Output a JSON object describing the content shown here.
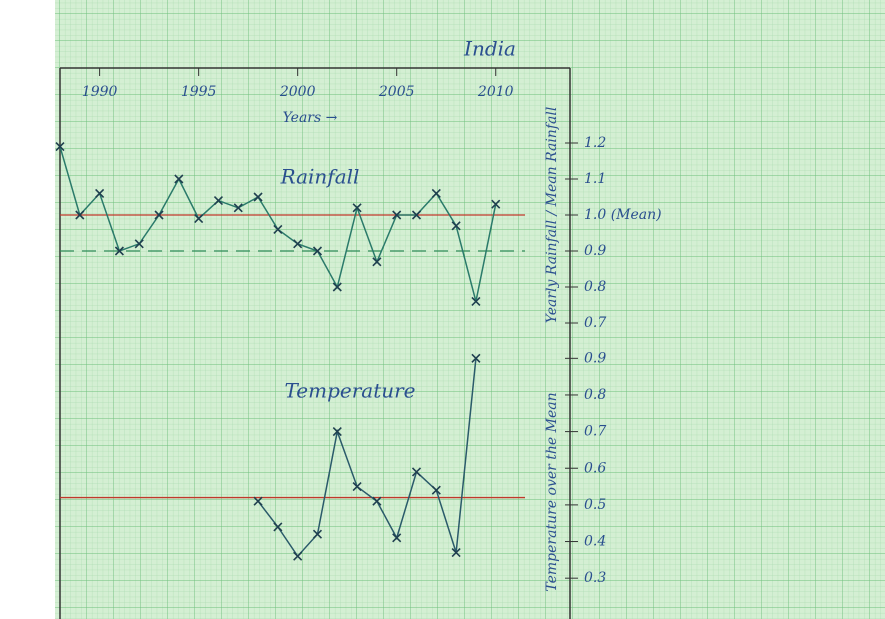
{
  "chart_data": [
    {
      "type": "line",
      "title": "India",
      "x_label": "Years →",
      "y_label": "Yearly Rainfall / Mean Rainfall",
      "annotation": "Rainfall",
      "x": [
        1988,
        1989,
        1990,
        1991,
        1992,
        1993,
        1994,
        1995,
        1996,
        1997,
        1998,
        1999,
        2000,
        2001,
        2002,
        2003,
        2004,
        2005,
        2006,
        2007,
        2008,
        2009,
        2010
      ],
      "series": [
        {
          "name": "Rainfall",
          "color": "#2a7a6a",
          "values": [
            1.19,
            1.0,
            1.06,
            0.9,
            0.92,
            1.0,
            1.1,
            0.99,
            1.04,
            1.02,
            1.05,
            0.96,
            0.92,
            0.9,
            0.8,
            1.02,
            0.87,
            1.0,
            1.0,
            1.06,
            0.97,
            0.76,
            1.03
          ]
        }
      ],
      "xlim": [
        1988,
        2013.75
      ],
      "xticks": [
        1990,
        1995,
        2000,
        2005,
        2010
      ],
      "ylim": [
        0.65,
        1.25
      ],
      "yticks": [
        1.2,
        1.1,
        {
          "value": 1.0,
          "label": "1.0 (Mean)"
        },
        0.9,
        0.8,
        0.7
      ],
      "reference_lines": [
        {
          "value": 1.0,
          "color": "#c0392b",
          "dashed": false
        },
        {
          "value": 0.9,
          "color": "#2e8b57",
          "dashed": true
        }
      ]
    },
    {
      "type": "line",
      "y_label": "Temperature over the Mean",
      "annotation": "Temperature",
      "x": [
        1998,
        1999,
        2000,
        2001,
        2002,
        2003,
        2004,
        2005,
        2006,
        2007,
        2008,
        2009
      ],
      "series": [
        {
          "name": "Temperature",
          "color": "#2a5a6a",
          "values": [
            0.51,
            0.44,
            0.36,
            0.42,
            0.7,
            0.55,
            0.51,
            0.41,
            0.59,
            0.54,
            0.37,
            0.9
          ]
        }
      ],
      "xlim": [
        1988,
        2013.75
      ],
      "ylim": [
        0.25,
        0.95
      ],
      "yticks": [
        0.9,
        0.8,
        0.7,
        0.6,
        0.5,
        0.4,
        0.3
      ],
      "reference_lines": [
        {
          "value": 0.52,
          "color": "#c0392b",
          "dashed": false
        }
      ]
    }
  ]
}
